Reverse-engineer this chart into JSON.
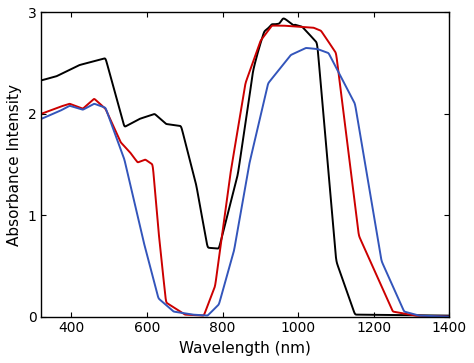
{
  "xlim": [
    320,
    1400
  ],
  "ylim": [
    0,
    3.0
  ],
  "xlabel": "Wavelength (nm)",
  "ylabel": "Absorbance Intensity",
  "xticks": [
    400,
    600,
    800,
    1000,
    1200,
    1400
  ],
  "yticks": [
    0,
    1,
    2,
    3
  ],
  "colors": {
    "black": "#000000",
    "red": "#cc0000",
    "blue": "#3355bb"
  },
  "linewidth": 1.4
}
